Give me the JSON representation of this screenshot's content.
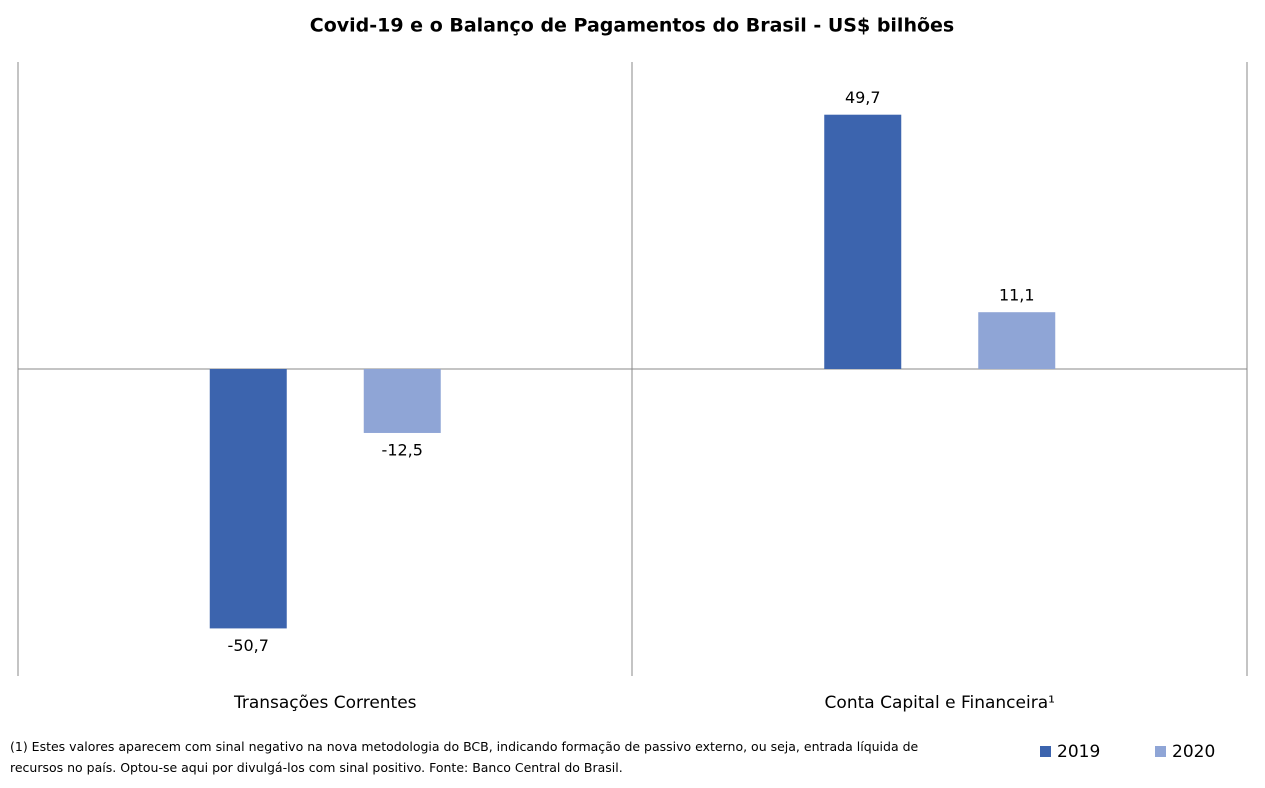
{
  "chart_data": {
    "type": "bar",
    "title": "Covid-19 e o Balanço de Pagamentos do Brasil - US$ bilhões",
    "categories": [
      "Transações Correntes",
      "Conta Capital e Financeira¹"
    ],
    "series": [
      {
        "name": "2019",
        "color": "#3c64ae",
        "values": [
          -50.7,
          49.7
        ],
        "value_labels": [
          "-50,7",
          "49,7"
        ]
      },
      {
        "name": "2020",
        "color": "#8fa5d6",
        "values": [
          -12.5,
          11.1
        ],
        "value_labels": [
          "-12,5",
          "11,1"
        ]
      }
    ],
    "ylim": [
      -60,
      60
    ],
    "legend": "bottom-right",
    "footnote": "(1) Estes valores aparecem com sinal negativo na nova metodologia do BCB, indicando formação de passivo externo, ou seja, entrada líquida de recursos no país. Optou-se aqui por divulgá-los com sinal positivo. Fonte:  Banco Central do Brasil."
  }
}
